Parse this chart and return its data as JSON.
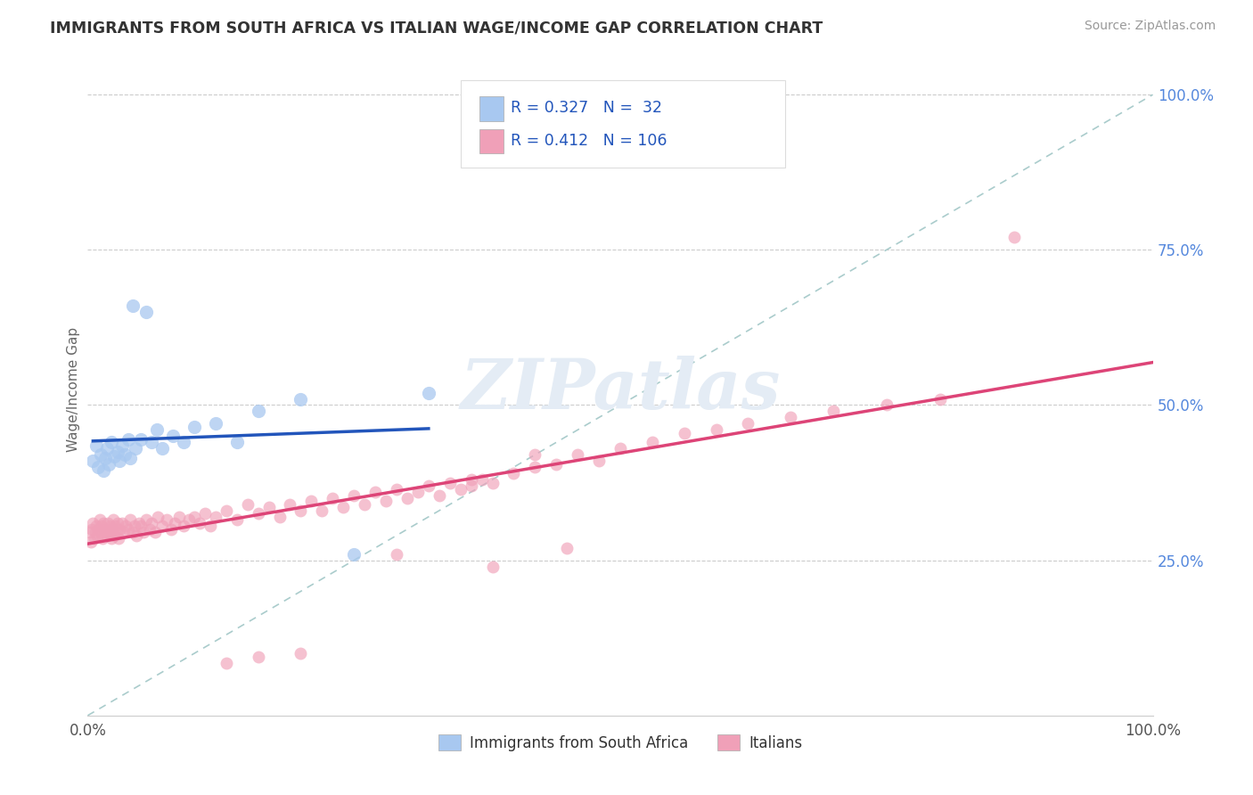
{
  "title": "IMMIGRANTS FROM SOUTH AFRICA VS ITALIAN WAGE/INCOME GAP CORRELATION CHART",
  "source": "Source: ZipAtlas.com",
  "ylabel": "Wage/Income Gap",
  "r1": 0.327,
  "n1": 32,
  "r2": 0.412,
  "n2": 106,
  "color_blue": "#A8C8F0",
  "color_blue_line": "#2255BB",
  "color_pink": "#F0A0B8",
  "color_pink_line": "#DD4477",
  "color_diag": "#AACCAA",
  "legend_label1": "Immigrants from South Africa",
  "legend_label2": "Italians",
  "blue_x": [
    0.005,
    0.008,
    0.01,
    0.012,
    0.015,
    0.016,
    0.018,
    0.02,
    0.022,
    0.025,
    0.028,
    0.03,
    0.032,
    0.035,
    0.038,
    0.04,
    0.042,
    0.045,
    0.05,
    0.055,
    0.06,
    0.065,
    0.07,
    0.08,
    0.09,
    0.1,
    0.12,
    0.14,
    0.16,
    0.2,
    0.25,
    0.32
  ],
  "blue_y": [
    0.41,
    0.435,
    0.4,
    0.42,
    0.395,
    0.415,
    0.43,
    0.405,
    0.44,
    0.418,
    0.425,
    0.41,
    0.435,
    0.42,
    0.445,
    0.415,
    0.66,
    0.43,
    0.445,
    0.65,
    0.44,
    0.46,
    0.43,
    0.45,
    0.44,
    0.465,
    0.47,
    0.44,
    0.49,
    0.51,
    0.26,
    0.52
  ],
  "pink_x": [
    0.002,
    0.003,
    0.004,
    0.005,
    0.006,
    0.007,
    0.008,
    0.009,
    0.01,
    0.011,
    0.012,
    0.013,
    0.014,
    0.015,
    0.016,
    0.017,
    0.018,
    0.019,
    0.02,
    0.021,
    0.022,
    0.023,
    0.024,
    0.025,
    0.026,
    0.027,
    0.028,
    0.029,
    0.03,
    0.032,
    0.034,
    0.036,
    0.038,
    0.04,
    0.042,
    0.044,
    0.046,
    0.048,
    0.05,
    0.052,
    0.055,
    0.058,
    0.06,
    0.063,
    0.066,
    0.07,
    0.074,
    0.078,
    0.082,
    0.086,
    0.09,
    0.095,
    0.1,
    0.105,
    0.11,
    0.115,
    0.12,
    0.13,
    0.14,
    0.15,
    0.16,
    0.17,
    0.18,
    0.19,
    0.2,
    0.21,
    0.22,
    0.23,
    0.24,
    0.25,
    0.26,
    0.27,
    0.28,
    0.29,
    0.3,
    0.31,
    0.32,
    0.33,
    0.34,
    0.35,
    0.36,
    0.37,
    0.38,
    0.4,
    0.42,
    0.44,
    0.46,
    0.48,
    0.5,
    0.53,
    0.56,
    0.59,
    0.62,
    0.66,
    0.7,
    0.75,
    0.8,
    0.45,
    0.38,
    0.42,
    0.36,
    0.29,
    0.2,
    0.16,
    0.13,
    0.87
  ],
  "pink_y": [
    0.295,
    0.28,
    0.3,
    0.31,
    0.285,
    0.295,
    0.305,
    0.29,
    0.3,
    0.315,
    0.295,
    0.305,
    0.285,
    0.31,
    0.295,
    0.3,
    0.29,
    0.31,
    0.295,
    0.305,
    0.285,
    0.3,
    0.315,
    0.29,
    0.305,
    0.295,
    0.31,
    0.285,
    0.3,
    0.31,
    0.295,
    0.305,
    0.3,
    0.315,
    0.295,
    0.305,
    0.29,
    0.31,
    0.305,
    0.295,
    0.315,
    0.3,
    0.31,
    0.295,
    0.32,
    0.305,
    0.315,
    0.3,
    0.31,
    0.32,
    0.305,
    0.315,
    0.32,
    0.31,
    0.325,
    0.305,
    0.32,
    0.33,
    0.315,
    0.34,
    0.325,
    0.335,
    0.32,
    0.34,
    0.33,
    0.345,
    0.33,
    0.35,
    0.335,
    0.355,
    0.34,
    0.36,
    0.345,
    0.365,
    0.35,
    0.36,
    0.37,
    0.355,
    0.375,
    0.365,
    0.37,
    0.38,
    0.375,
    0.39,
    0.4,
    0.405,
    0.42,
    0.41,
    0.43,
    0.44,
    0.455,
    0.46,
    0.47,
    0.48,
    0.49,
    0.5,
    0.51,
    0.27,
    0.24,
    0.42,
    0.38,
    0.26,
    0.1,
    0.095,
    0.085,
    0.77
  ]
}
